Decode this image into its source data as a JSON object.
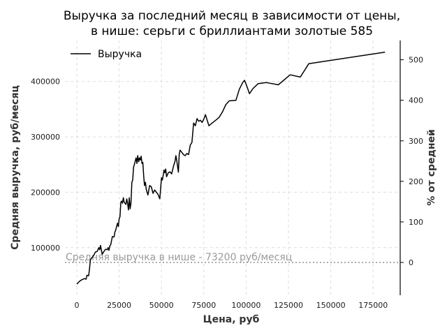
{
  "chart_data": {
    "type": "line",
    "title_line1": "Выручка за последний месяц в зависимости от цены,",
    "title_line2": "в нише: серьги с бриллиантами золотые 585",
    "xlabel": "Цена, руб",
    "ylabel": "Средняя выручка, руб/месяц",
    "y2label": "% от средней",
    "legend": {
      "label": "Выручка",
      "placement": "top-left"
    },
    "xlim": [
      -7000,
      191000
    ],
    "ylim": [
      14000,
      474000
    ],
    "xticks": [
      0,
      25000,
      50000,
      75000,
      100000,
      125000,
      150000,
      175000
    ],
    "xtick_labels": [
      "0",
      "25000",
      "50000",
      "75000",
      "100000",
      "125000",
      "150000",
      "175000"
    ],
    "yticks": [
      100000,
      200000,
      300000,
      400000
    ],
    "ytick_labels": [
      "100000",
      "200000",
      "300000",
      "400000"
    ],
    "y2ticks": [
      0,
      100,
      200,
      300,
      400,
      500
    ],
    "y2tick_labels": [
      "0",
      "100",
      "200",
      "300",
      "400",
      "500"
    ],
    "grid": true,
    "reference_line": {
      "value": 73200,
      "label": "Средняя выручка в нише - 73200 руб/месяц"
    },
    "colors": {
      "series": "#000000",
      "reference": "#9a9a9a",
      "grid": "#dddddd"
    },
    "series": [
      {
        "name": "Выручка",
        "x": [
          0,
          1500,
          3000,
          4500,
          5500,
          6000,
          7000,
          7500,
          8000,
          9000,
          10000,
          11000,
          12000,
          13000,
          13500,
          14000,
          15000,
          16000,
          17000,
          18000,
          18500,
          19000,
          19500,
          20000,
          21000,
          22000,
          22500,
          23000,
          24000,
          24500,
          25000,
          25500,
          26000,
          26500,
          27000,
          27500,
          28000,
          29000,
          29500,
          30000,
          30500,
          31000,
          31500,
          32000,
          32500,
          33000,
          33500,
          34000,
          35000,
          35500,
          36000,
          36500,
          37000,
          37500,
          38000,
          38500,
          39000,
          39500,
          40000,
          40500,
          41000,
          42000,
          43000,
          44000,
          45000,
          46000,
          47000,
          48000,
          49000,
          50000,
          50500,
          51000,
          51500,
          52000,
          52500,
          53000,
          54000,
          55000,
          56000,
          57000,
          58000,
          58500,
          59000,
          60000,
          60500,
          61000,
          62000,
          63000,
          64000,
          65000,
          66000,
          67000,
          68000,
          69000,
          70000,
          71000,
          72000,
          73000,
          74000,
          75000,
          76000,
          78000,
          80000,
          82000,
          84000,
          86000,
          88000,
          90000,
          94000,
          96000,
          98000,
          99000,
          100000,
          102000,
          104000,
          107000,
          112000,
          119000,
          126000,
          132000,
          137000,
          182000
        ],
        "y": [
          34000,
          39000,
          42000,
          44000,
          43000,
          50000,
          49000,
          62000,
          78000,
          82000,
          86000,
          92000,
          93000,
          100000,
          96000,
          104000,
          88000,
          93000,
          97000,
          96000,
          100000,
          95000,
          103000,
          105000,
          120000,
          119000,
          128000,
          132000,
          144000,
          138000,
          152000,
          156000,
          182000,
          184000,
          180000,
          190000,
          182000,
          178000,
          188000,
          180000,
          168000,
          190000,
          170000,
          180000,
          218000,
          222000,
          245000,
          250000,
          262000,
          252000,
          266000,
          255000,
          262000,
          258000,
          265000,
          252000,
          254000,
          230000,
          212000,
          218000,
          205000,
          195000,
          212000,
          210000,
          198000,
          204000,
          200000,
          196000,
          188000,
          226000,
          222000,
          230000,
          240000,
          235000,
          242000,
          228000,
          235000,
          237000,
          233000,
          246000,
          256000,
          266000,
          258000,
          236000,
          268000,
          276000,
          272000,
          268000,
          266000,
          270000,
          268000,
          285000,
          290000,
          325000,
          320000,
          333000,
          328000,
          330000,
          326000,
          332000,
          340000,
          320000,
          325000,
          330000,
          335000,
          345000,
          358000,
          365000,
          366000,
          386000,
          398000,
          402000,
          395000,
          378000,
          387000,
          396000,
          398000,
          394000,
          412000,
          408000,
          432000,
          453000
        ]
      }
    ]
  }
}
